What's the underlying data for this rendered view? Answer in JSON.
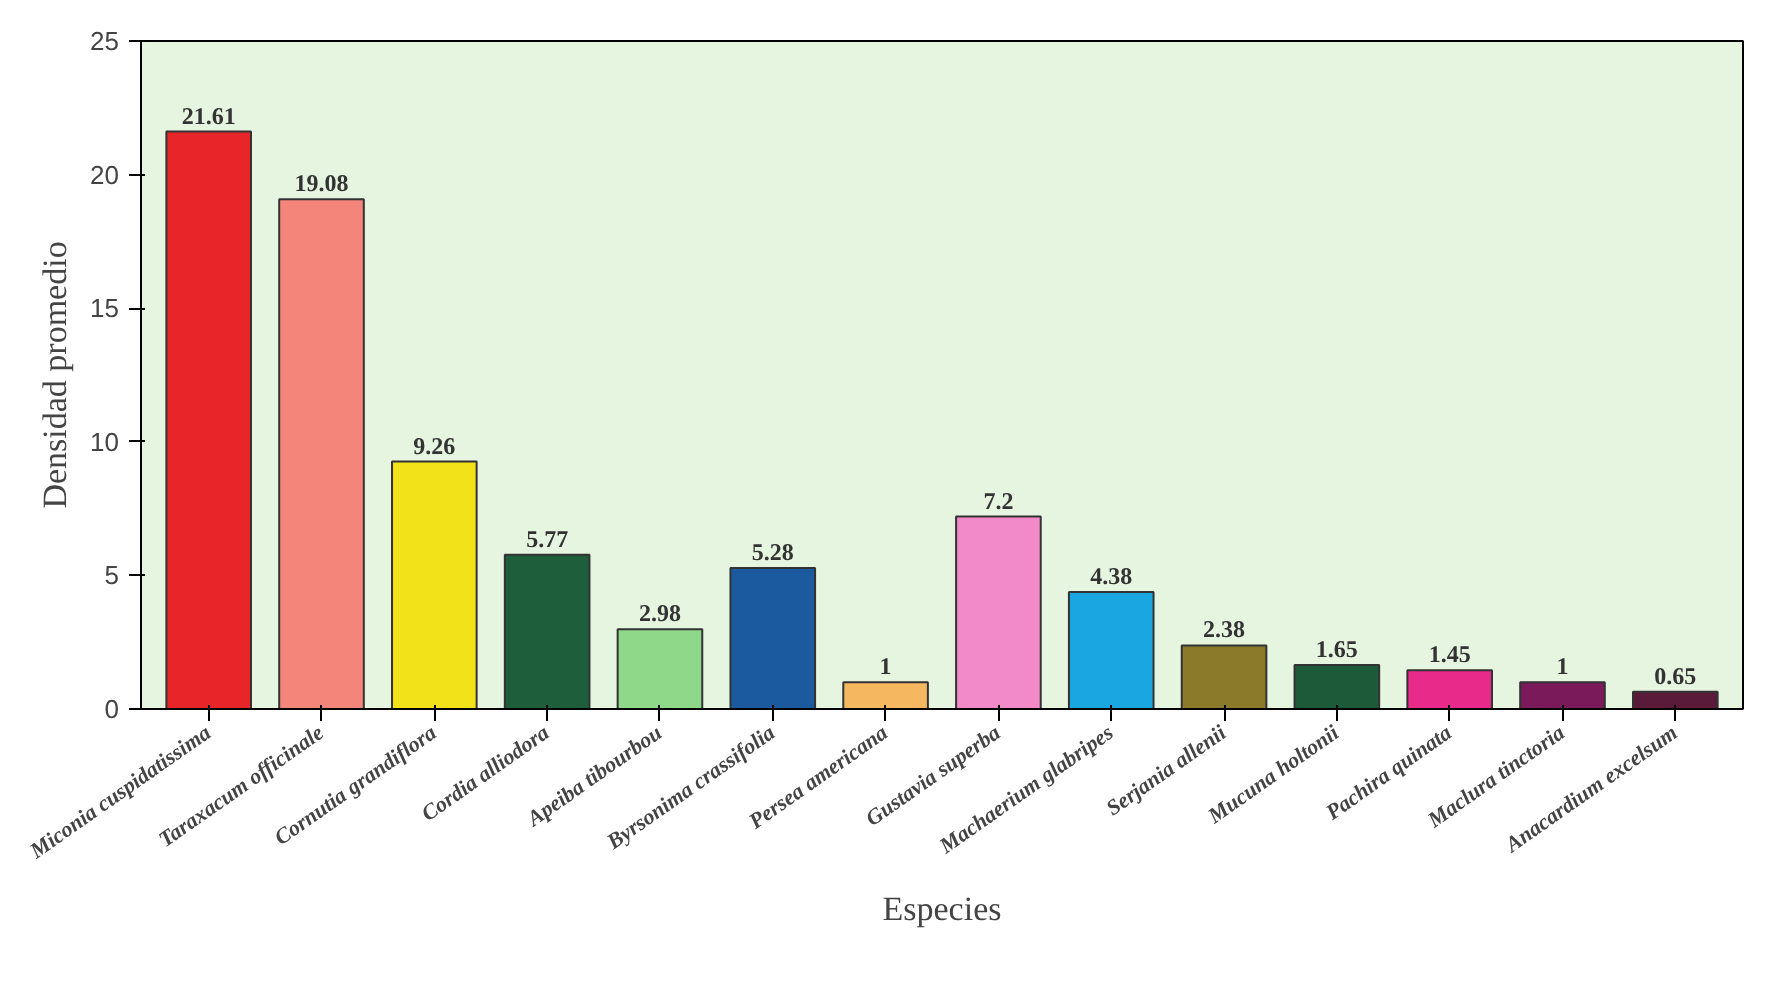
{
  "chart_data": {
    "type": "bar",
    "xlabel": "Especies",
    "ylabel": "Densidad promedio",
    "categories": [
      "Miconia cuspidatissima",
      "Taraxacum officinale",
      "Cornutia grandiflora",
      "Cordia alliodora",
      "Apeiba tibourbou",
      "Byrsonima crassifolia",
      "Persea americana",
      "Gustavia superba",
      "Machaerium glabripes",
      "Serjania allenii",
      "Mucuna holtonii",
      "Pachira quinata",
      "Maclura tinctoria",
      "Anacardium excelsum"
    ],
    "values": [
      21.61,
      19.08,
      9.26,
      5.77,
      2.98,
      5.28,
      1,
      7.2,
      4.38,
      2.38,
      1.65,
      1.45,
      1,
      0.65
    ],
    "colors": [
      "#e8262a",
      "#f4857a",
      "#f2e21a",
      "#1e5e3a",
      "#8fd88a",
      "#1c5aa0",
      "#f5b860",
      "#f28ac8",
      "#1aa6e0",
      "#8a7a2a",
      "#1d5a3a",
      "#e82a8a",
      "#7a1a5a",
      "#5a1a3a"
    ],
    "ylim": [
      0,
      25
    ],
    "yticks": [
      0,
      5,
      10,
      15,
      20,
      25
    ],
    "grid": false,
    "data_labels": true
  }
}
